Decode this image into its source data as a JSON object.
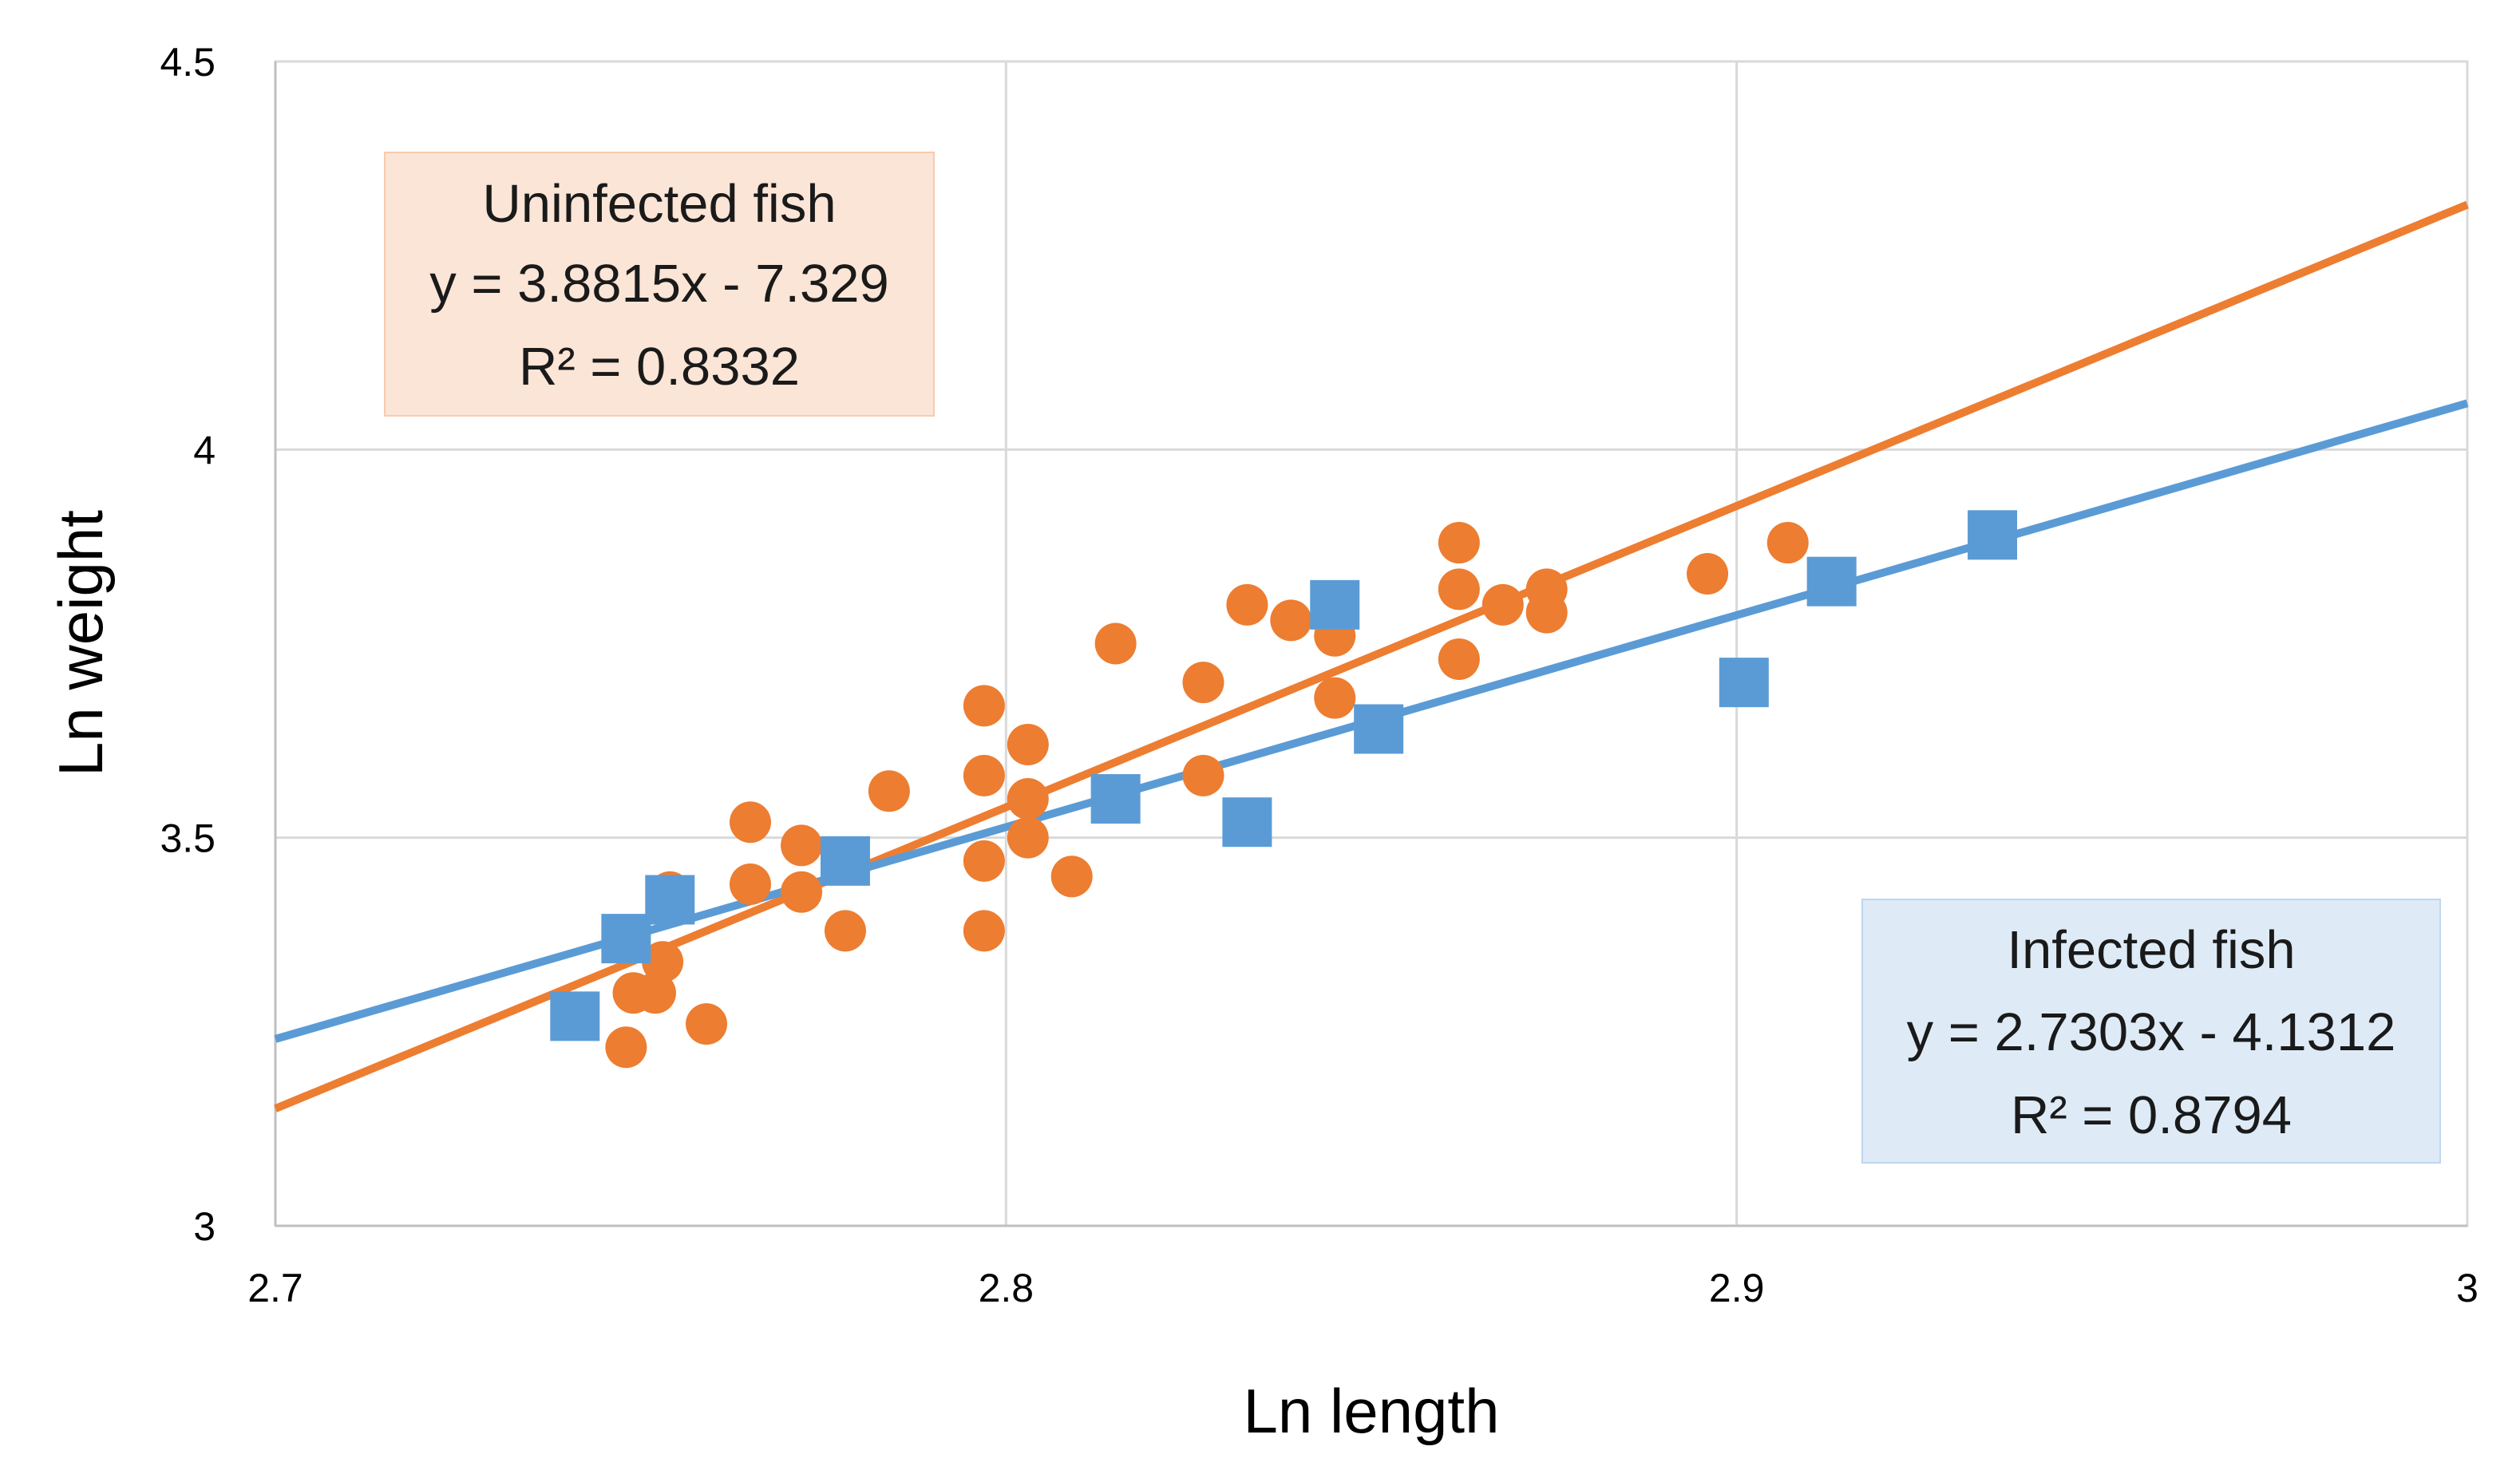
{
  "chart_data": {
    "type": "scatter",
    "xlabel": "Ln length",
    "ylabel": "Ln  weight",
    "xlim": [
      2.7,
      3.0
    ],
    "ylim": [
      3.0,
      4.5
    ],
    "xticks": [
      "2.7",
      "2.8",
      "2.9",
      "3"
    ],
    "yticks": [
      "3",
      "3.5",
      "4",
      "4.5"
    ],
    "grid": true,
    "series": [
      {
        "name": "Uninfected fish",
        "color": "#ED7D31",
        "marker": "circle",
        "points": [
          [
            2.748,
            3.23
          ],
          [
            2.749,
            3.3
          ],
          [
            2.752,
            3.3
          ],
          [
            2.753,
            3.34
          ],
          [
            2.754,
            3.43
          ],
          [
            2.759,
            3.26
          ],
          [
            2.765,
            3.44
          ],
          [
            2.765,
            3.52
          ],
          [
            2.772,
            3.43
          ],
          [
            2.772,
            3.49
          ],
          [
            2.778,
            3.38
          ],
          [
            2.778,
            3.47
          ],
          [
            2.784,
            3.56
          ],
          [
            2.797,
            3.38
          ],
          [
            2.797,
            3.47
          ],
          [
            2.797,
            3.58
          ],
          [
            2.797,
            3.67
          ],
          [
            2.803,
            3.5
          ],
          [
            2.803,
            3.55
          ],
          [
            2.803,
            3.62
          ],
          [
            2.809,
            3.45
          ],
          [
            2.815,
            3.75
          ],
          [
            2.827,
            3.58
          ],
          [
            2.827,
            3.7
          ],
          [
            2.833,
            3.8
          ],
          [
            2.839,
            3.78
          ],
          [
            2.845,
            3.68
          ],
          [
            2.845,
            3.76
          ],
          [
            2.862,
            3.73
          ],
          [
            2.862,
            3.82
          ],
          [
            2.862,
            3.88
          ],
          [
            2.868,
            3.8
          ],
          [
            2.874,
            3.79
          ],
          [
            2.874,
            3.82
          ],
          [
            2.896,
            3.84
          ],
          [
            2.907,
            3.88
          ]
        ],
        "trendline": {
          "slope": 3.8815,
          "intercept": -7.329,
          "label": "y = 3.8815x - 7.329",
          "r2": "R² = 0.8332"
        }
      },
      {
        "name": "Infected fish",
        "color": "#5B9BD5",
        "marker": "square",
        "points": [
          [
            2.741,
            3.27
          ],
          [
            2.748,
            3.37
          ],
          [
            2.754,
            3.42
          ],
          [
            2.778,
            3.47
          ],
          [
            2.815,
            3.55
          ],
          [
            2.833,
            3.52
          ],
          [
            2.845,
            3.8
          ],
          [
            2.851,
            3.64
          ],
          [
            2.901,
            3.7
          ],
          [
            2.913,
            3.83
          ],
          [
            2.935,
            3.89
          ]
        ],
        "trendline": {
          "slope": 2.7303,
          "intercept": -4.1312,
          "label": "y = 2.7303x - 4.1312",
          "r2": "R² = 0.8794"
        }
      }
    ],
    "annotations": [
      {
        "title": "Uninfected fish",
        "equation": "y = 3.8815x - 7.329",
        "r2": "R² = 0.8332",
        "color": "#FBE5D6"
      },
      {
        "title": "Infected fish",
        "equation": "y = 2.7303x - 4.1312",
        "r2": "R² = 0.8794",
        "color": "#DEEBF7"
      }
    ]
  }
}
